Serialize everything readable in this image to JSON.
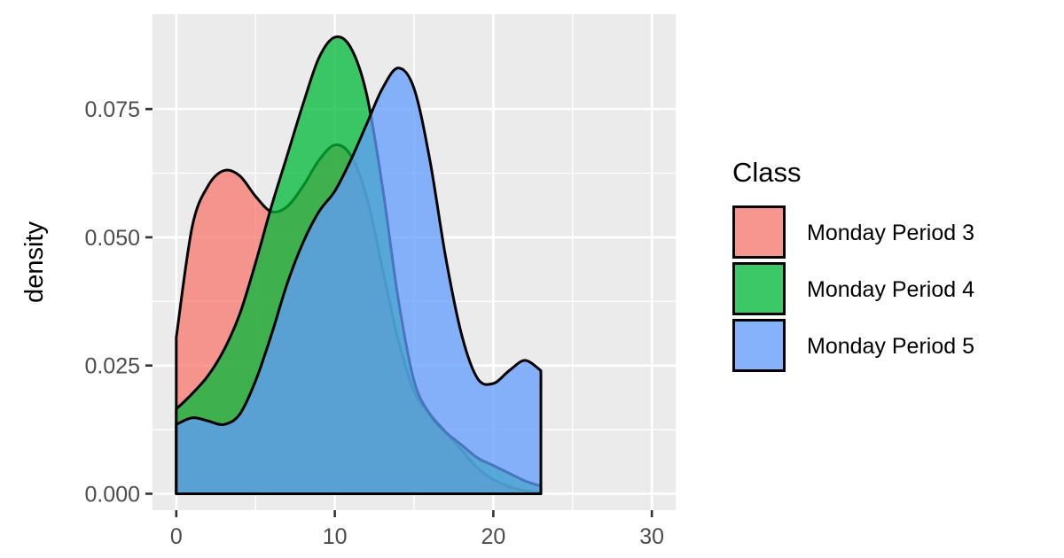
{
  "chart_data": {
    "type": "area",
    "subtype": "density",
    "title": "",
    "xlabel": "",
    "ylabel": "density",
    "xlim": [
      -1.5,
      31.5
    ],
    "ylim": [
      -0.0032,
      0.0935
    ],
    "x_ticks": [
      0,
      10,
      20,
      30
    ],
    "x_tick_labels": [
      "0",
      "10",
      "20",
      "30"
    ],
    "y_ticks": [
      0.0,
      0.025,
      0.05,
      0.075
    ],
    "y_tick_labels": [
      "0.000",
      "0.025",
      "0.050",
      "0.075"
    ],
    "grid": true,
    "legend": {
      "title": "Class",
      "position": "right"
    },
    "series": [
      {
        "name": "Monday Period 3",
        "color": "#F8766D",
        "x": [
          0,
          1,
          2,
          3,
          4,
          5,
          6,
          7,
          8,
          9,
          10,
          11,
          12,
          13,
          14,
          15,
          16,
          17,
          18,
          19,
          20,
          21,
          22,
          23
        ],
        "y": [
          0.0305,
          0.052,
          0.06,
          0.063,
          0.062,
          0.058,
          0.055,
          0.056,
          0.06,
          0.065,
          0.068,
          0.066,
          0.058,
          0.044,
          0.03,
          0.02,
          0.0155,
          0.012,
          0.0085,
          0.005,
          0.0028,
          0.0014,
          0.0006,
          0.0002
        ]
      },
      {
        "name": "Monday Period 4",
        "color": "#00BA38",
        "x": [
          0,
          1,
          2,
          3,
          4,
          5,
          6,
          7,
          8,
          9,
          10,
          11,
          12,
          13,
          14,
          15,
          16,
          17,
          18,
          19,
          20,
          21,
          22,
          23
        ],
        "y": [
          0.0165,
          0.0195,
          0.023,
          0.028,
          0.035,
          0.045,
          0.056,
          0.066,
          0.076,
          0.085,
          0.089,
          0.087,
          0.078,
          0.06,
          0.038,
          0.022,
          0.0155,
          0.012,
          0.0095,
          0.007,
          0.0055,
          0.004,
          0.0025,
          0.0015
        ]
      },
      {
        "name": "Monday Period 5",
        "color": "#619CFF",
        "x": [
          0,
          1,
          2,
          3,
          4,
          5,
          6,
          7,
          8,
          9,
          10,
          11,
          12,
          13,
          14,
          15,
          16,
          17,
          18,
          19,
          20,
          21,
          22,
          23
        ],
        "y": [
          0.0135,
          0.0148,
          0.0142,
          0.0135,
          0.0155,
          0.022,
          0.031,
          0.041,
          0.049,
          0.055,
          0.059,
          0.065,
          0.072,
          0.079,
          0.083,
          0.079,
          0.065,
          0.046,
          0.031,
          0.0225,
          0.0215,
          0.024,
          0.026,
          0.024
        ]
      }
    ]
  }
}
